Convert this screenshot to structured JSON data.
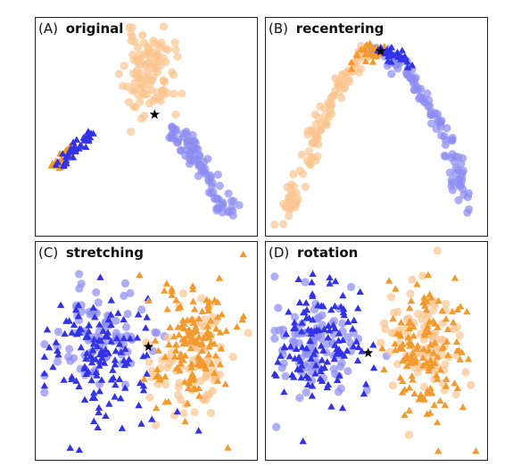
{
  "colors": {
    "orange_circle": "#fbc48f",
    "orange_triangle": "#f39a2e",
    "blue_circle": "#8c8cf2",
    "blue_triangle": "#3232e6",
    "star": "#000000"
  },
  "marker_legend": {
    "circle": "circle-marker",
    "triangle": "triangle-marker",
    "star": "star-marker"
  },
  "chart_data": [
    {
      "type": "scatter",
      "panel_letter": "(A)",
      "title": "original",
      "grid": false,
      "axes_visible": false,
      "xlim": [
        0,
        100
      ],
      "ylim": [
        0,
        100
      ],
      "series": [
        {
          "marker": "circle",
          "color_key": "orange_circle",
          "cluster": {
            "cx": 51,
            "cy": 76,
            "sx": 6,
            "sy": 10,
            "n": 110,
            "seed": 11
          }
        },
        {
          "marker": "circle",
          "color_key": "blue_circle",
          "line": {
            "from": [
              64,
              50
            ],
            "to": [
              90,
              8
            ],
            "spread": 2.5,
            "n": 90,
            "seed": 12
          }
        },
        {
          "marker": "triangle",
          "color_key": "orange_triangle",
          "line": {
            "from": [
              6,
              30
            ],
            "to": [
              15,
              40
            ],
            "spread": 1.2,
            "n": 35,
            "seed": 13
          }
        },
        {
          "marker": "triangle",
          "color_key": "blue_triangle",
          "line": {
            "from": [
              8,
              31
            ],
            "to": [
              24,
              48
            ],
            "spread": 1.2,
            "n": 40,
            "seed": 14
          }
        }
      ],
      "star": [
        54,
        56
      ]
    },
    {
      "type": "scatter",
      "panel_letter": "(B)",
      "title": "recentering",
      "grid": false,
      "axes_visible": false,
      "xlim": [
        0,
        100
      ],
      "ylim": [
        0,
        100
      ],
      "series": [
        {
          "marker": "circle",
          "color_key": "orange_circle",
          "curve": {
            "points": [
              [
                4,
                4
              ],
              [
                12,
                20
              ],
              [
                22,
                48
              ],
              [
                32,
                70
              ],
              [
                42,
                84
              ],
              [
                50,
                88
              ]
            ],
            "spread": 2.2,
            "n": 120,
            "seed": 21
          }
        },
        {
          "marker": "circle",
          "color_key": "blue_circle",
          "curve": {
            "points": [
              [
                50,
                88
              ],
              [
                62,
                80
              ],
              [
                72,
                66
              ],
              [
                82,
                48
              ],
              [
                89,
                30
              ],
              [
                93,
                10
              ]
            ],
            "spread": 2.0,
            "n": 110,
            "seed": 22
          }
        },
        {
          "marker": "triangle",
          "color_key": "orange_triangle",
          "curve": {
            "points": [
              [
                40,
                82
              ],
              [
                46,
                87
              ],
              [
                52,
                88
              ]
            ],
            "spread": 2.0,
            "n": 30,
            "seed": 23
          }
        },
        {
          "marker": "triangle",
          "color_key": "blue_triangle",
          "curve": {
            "points": [
              [
                52,
                88
              ],
              [
                60,
                85
              ],
              [
                68,
                78
              ]
            ],
            "spread": 2.0,
            "n": 30,
            "seed": 24
          }
        }
      ],
      "star": [
        52,
        87
      ]
    },
    {
      "type": "scatter",
      "panel_letter": "(C)",
      "title": "stretching",
      "grid": false,
      "axes_visible": false,
      "xlim": [
        0,
        100
      ],
      "ylim": [
        0,
        100
      ],
      "series": [
        {
          "marker": "circle",
          "color_key": "blue_circle",
          "cluster": {
            "cx": 27,
            "cy": 58,
            "sx": 11,
            "sy": 12,
            "n": 90,
            "seed": 31
          }
        },
        {
          "marker": "triangle",
          "color_key": "blue_triangle",
          "cluster": {
            "cx": 27,
            "cy": 48,
            "sx": 13,
            "sy": 16,
            "n": 130,
            "seed": 32
          }
        },
        {
          "marker": "circle",
          "color_key": "orange_circle",
          "cluster": {
            "cx": 72,
            "cy": 44,
            "sx": 10,
            "sy": 13,
            "n": 90,
            "seed": 33
          }
        },
        {
          "marker": "triangle",
          "color_key": "orange_triangle",
          "cluster": {
            "cx": 71,
            "cy": 54,
            "sx": 10,
            "sy": 18,
            "n": 140,
            "seed": 34
          }
        }
      ],
      "star": [
        51,
        52
      ]
    },
    {
      "type": "scatter",
      "panel_letter": "(D)",
      "title": "rotation",
      "grid": false,
      "axes_visible": false,
      "xlim": [
        0,
        100
      ],
      "ylim": [
        0,
        100
      ],
      "series": [
        {
          "marker": "circle",
          "color_key": "blue_circle",
          "cluster": {
            "cx": 22,
            "cy": 53,
            "sx": 10,
            "sy": 12,
            "n": 95,
            "seed": 41
          }
        },
        {
          "marker": "triangle",
          "color_key": "blue_triangle",
          "cluster": {
            "cx": 22,
            "cy": 55,
            "sx": 11,
            "sy": 15,
            "n": 120,
            "seed": 42
          }
        },
        {
          "marker": "circle",
          "color_key": "orange_circle",
          "cluster": {
            "cx": 73,
            "cy": 52,
            "sx": 10,
            "sy": 15,
            "n": 95,
            "seed": 43
          }
        },
        {
          "marker": "triangle",
          "color_key": "orange_triangle",
          "cluster": {
            "cx": 72,
            "cy": 48,
            "sx": 10,
            "sy": 16,
            "n": 130,
            "seed": 44
          }
        }
      ],
      "star": [
        46,
        49
      ]
    }
  ]
}
